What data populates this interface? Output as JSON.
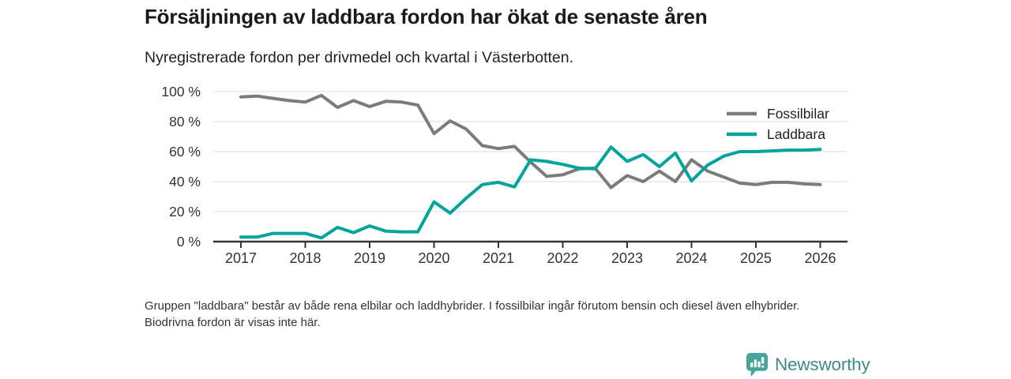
{
  "header": {
    "title": "Försäljningen av laddbara fordon har ökat de senaste åren",
    "subtitle": "Nyregistrerade fordon per drivmedel och kvartal i Västerbotten."
  },
  "chart_data": {
    "type": "line",
    "categories": [
      "2017 Q1",
      "2017 Q2",
      "2017 Q3",
      "2017 Q4",
      "2018 Q1",
      "2018 Q2",
      "2018 Q3",
      "2018 Q4",
      "2019 Q1",
      "2019 Q2",
      "2019 Q3",
      "2019 Q4",
      "2020 Q1",
      "2020 Q2",
      "2020 Q3",
      "2020 Q4",
      "2021 Q1",
      "2021 Q2",
      "2021 Q3",
      "2021 Q4",
      "2022 Q1",
      "2022 Q2",
      "2022 Q3",
      "2022 Q4",
      "2023 Q1",
      "2023 Q2",
      "2023 Q3",
      "2023 Q4",
      "2024 Q1",
      "2024 Q2",
      "2024 Q3",
      "2024 Q4",
      "2025 Q1",
      "2025 Q2",
      "2025 Q3",
      "2025 Q4",
      "2026 Q1"
    ],
    "series": [
      {
        "name": "Fossilbilar",
        "color": "#7b7b7b",
        "values": [
          96.5,
          97,
          95.5,
          94,
          93,
          97.5,
          89.5,
          94,
          90,
          93.5,
          93,
          91,
          72,
          80.5,
          75,
          64,
          62,
          63.5,
          53,
          43.5,
          44.5,
          48.5,
          49,
          36,
          44,
          40,
          47,
          40,
          54.5,
          47,
          43,
          39,
          38,
          39.5,
          39.5,
          38.5,
          38
        ]
      },
      {
        "name": "Laddbara",
        "color": "#00a49c",
        "values": [
          3,
          3,
          5.5,
          5.5,
          5.5,
          2.5,
          9.5,
          6,
          10.5,
          7,
          6.5,
          6.5,
          26.5,
          19,
          29,
          38,
          39.5,
          36.5,
          54.5,
          53.5,
          51.5,
          49,
          48.5,
          63,
          53.5,
          58,
          50,
          59,
          40.5,
          51,
          57,
          60,
          60,
          60.5,
          61,
          61,
          61.5
        ]
      }
    ],
    "ylim": [
      0,
      100
    ],
    "y_tick_labels": [
      "0 %",
      "20 %",
      "40 %",
      "60 %",
      "80 %",
      "100 %"
    ],
    "x_tick_labels": [
      "2017",
      "2018",
      "2019",
      "2020",
      "2021",
      "2022",
      "2023",
      "2024",
      "2025",
      "2026"
    ],
    "grid": "horizontal",
    "legend_position": "top-right",
    "axis_color": "#333333",
    "grid_color": "#e3e3e3",
    "tick_label_color": "#333333"
  },
  "footer": {
    "note": "Gruppen \"laddbara\" består av både rena elbilar och laddhybrider. I fossilbilar ingår förutom bensin och diesel även elhybrider. Biodrivna fordon är visas inte här."
  },
  "brand": {
    "wordmark": "Newsworthy",
    "icon": "newsworthy-chart-bubble-icon",
    "wordmark_color": "#3e8c88",
    "icon_color": "#47a39c"
  }
}
